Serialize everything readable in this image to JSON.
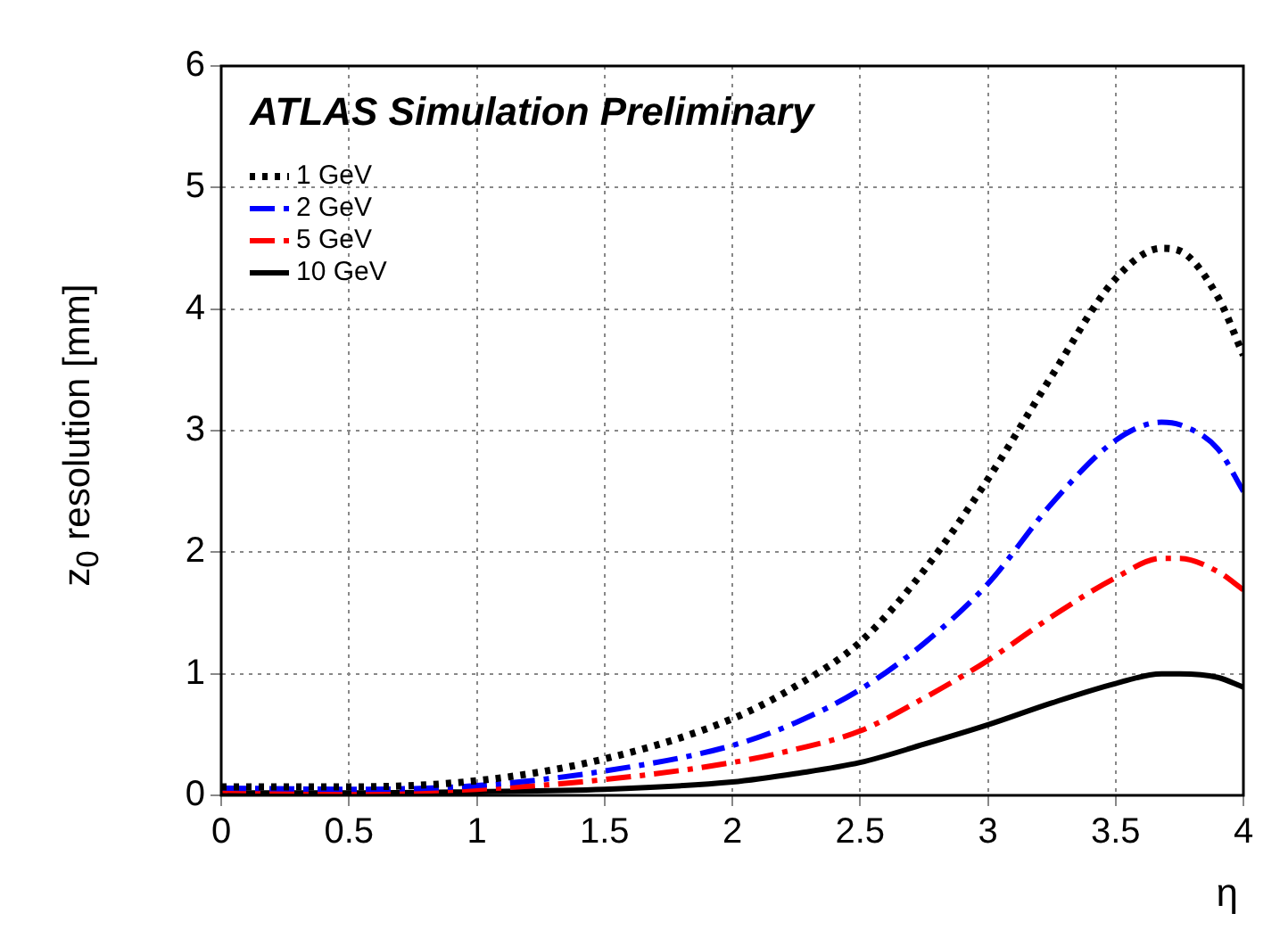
{
  "chart_data": {
    "type": "line",
    "title": "ATLAS Simulation Preliminary",
    "xlabel": "η",
    "ylabel": "z$_{0}$ resolution [mm]",
    "x": [
      0,
      0.5,
      1,
      1.5,
      2,
      2.25,
      2.5,
      2.75,
      3,
      3.25,
      3.5,
      3.68,
      3.75,
      3.9,
      4
    ],
    "series": [
      {
        "name": "1 GeV",
        "color": "#000000",
        "line_style": "dotted",
        "values": [
          0.07,
          0.07,
          0.12,
          0.3,
          0.63,
          0.9,
          1.26,
          1.85,
          2.6,
          3.45,
          4.25,
          4.5,
          4.48,
          4.1,
          3.62
        ]
      },
      {
        "name": "2 GeV",
        "color": "#0000ff",
        "line_style": "dashed",
        "values": [
          0.06,
          0.05,
          0.08,
          0.2,
          0.41,
          0.6,
          0.87,
          1.25,
          1.74,
          2.4,
          2.92,
          3.07,
          3.05,
          2.85,
          2.5
        ]
      },
      {
        "name": "5 GeV",
        "color": "#ff0000",
        "line_style": "dashed",
        "values": [
          0.04,
          0.03,
          0.05,
          0.13,
          0.27,
          0.38,
          0.53,
          0.8,
          1.11,
          1.47,
          1.79,
          1.95,
          1.95,
          1.84,
          1.69
        ]
      },
      {
        "name": "10 GeV",
        "color": "#000000",
        "line_style": "solid",
        "values": [
          0.02,
          0.02,
          0.03,
          0.05,
          0.11,
          0.18,
          0.27,
          0.42,
          0.58,
          0.76,
          0.92,
          1.0,
          1.0,
          0.97,
          0.89
        ]
      }
    ],
    "xlim": [
      0,
      4
    ],
    "xticks": [
      0,
      0.5,
      1,
      1.5,
      2,
      2.5,
      3,
      3.5,
      4
    ],
    "ylim": [
      0,
      6
    ],
    "yticks": [
      0,
      1,
      2,
      3,
      4,
      5,
      6
    ],
    "grid": true,
    "legend": "top left",
    "marker": "none"
  }
}
